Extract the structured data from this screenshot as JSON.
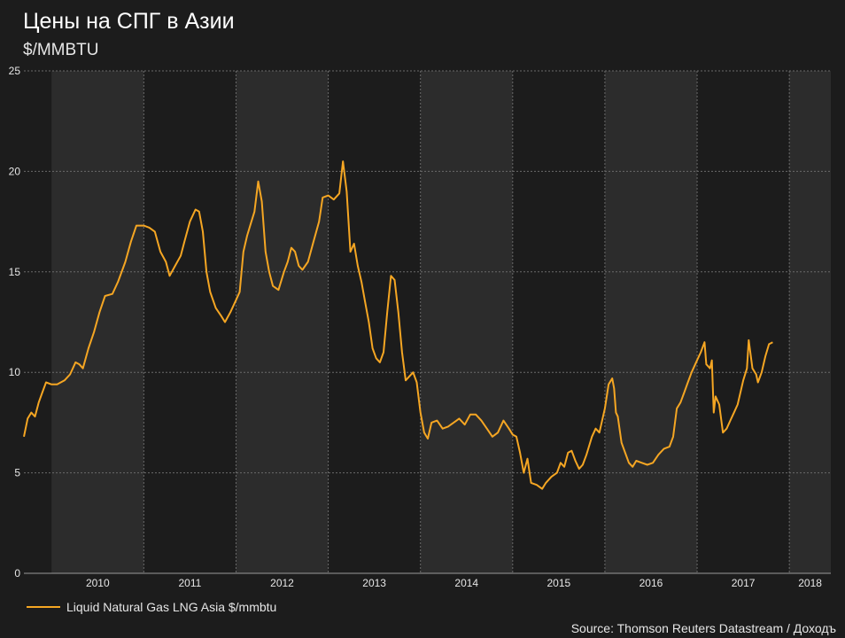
{
  "chart_data": {
    "type": "line",
    "title": "Цены на СПГ в Азии",
    "ylabel": "$/MMBTU",
    "ylim": [
      0,
      25
    ],
    "yticks": [
      0,
      5,
      10,
      15,
      20,
      25
    ],
    "xlim": [
      2009.7,
      2018.45
    ],
    "year_ticks": [
      "2010",
      "2011",
      "2012",
      "2013",
      "2014",
      "2015",
      "2016",
      "2017",
      "2018"
    ],
    "grid": true,
    "legend_position": "bottom-left",
    "line_color": "#f5a623",
    "band_colors": [
      "#1c1c1c",
      "#2c2c2c"
    ],
    "series": [
      {
        "name": "Liquid Natural Gas LNG Asia $/mmbtu",
        "points": [
          [
            2009.7,
            6.8
          ],
          [
            2009.74,
            7.7
          ],
          [
            2009.78,
            8.0
          ],
          [
            2009.82,
            7.8
          ],
          [
            2009.86,
            8.5
          ],
          [
            2009.9,
            9.0
          ],
          [
            2009.94,
            9.5
          ],
          [
            2010.0,
            9.4
          ],
          [
            2010.06,
            9.4
          ],
          [
            2010.14,
            9.6
          ],
          [
            2010.2,
            9.9
          ],
          [
            2010.26,
            10.5
          ],
          [
            2010.3,
            10.4
          ],
          [
            2010.34,
            10.2
          ],
          [
            2010.4,
            11.2
          ],
          [
            2010.46,
            12.0
          ],
          [
            2010.52,
            13.0
          ],
          [
            2010.58,
            13.8
          ],
          [
            2010.66,
            13.9
          ],
          [
            2010.72,
            14.5
          ],
          [
            2010.8,
            15.5
          ],
          [
            2010.86,
            16.5
          ],
          [
            2010.92,
            17.3
          ],
          [
            2011.0,
            17.3
          ],
          [
            2011.06,
            17.2
          ],
          [
            2011.12,
            17.0
          ],
          [
            2011.18,
            16.0
          ],
          [
            2011.24,
            15.5
          ],
          [
            2011.28,
            14.8
          ],
          [
            2011.34,
            15.3
          ],
          [
            2011.4,
            15.8
          ],
          [
            2011.44,
            16.5
          ],
          [
            2011.5,
            17.5
          ],
          [
            2011.56,
            18.1
          ],
          [
            2011.6,
            18.0
          ],
          [
            2011.64,
            17.0
          ],
          [
            2011.68,
            15.0
          ],
          [
            2011.72,
            14.0
          ],
          [
            2011.78,
            13.2
          ],
          [
            2011.84,
            12.8
          ],
          [
            2011.88,
            12.5
          ],
          [
            2011.94,
            13.0
          ],
          [
            2012.0,
            13.6
          ],
          [
            2012.04,
            14.0
          ],
          [
            2012.08,
            16.0
          ],
          [
            2012.12,
            16.8
          ],
          [
            2012.16,
            17.4
          ],
          [
            2012.2,
            18.0
          ],
          [
            2012.24,
            19.5
          ],
          [
            2012.28,
            18.5
          ],
          [
            2012.32,
            16.0
          ],
          [
            2012.36,
            15.0
          ],
          [
            2012.4,
            14.3
          ],
          [
            2012.46,
            14.1
          ],
          [
            2012.52,
            15.0
          ],
          [
            2012.56,
            15.5
          ],
          [
            2012.6,
            16.2
          ],
          [
            2012.64,
            16.0
          ],
          [
            2012.68,
            15.3
          ],
          [
            2012.72,
            15.1
          ],
          [
            2012.78,
            15.5
          ],
          [
            2012.84,
            16.5
          ],
          [
            2012.9,
            17.5
          ],
          [
            2012.94,
            18.7
          ],
          [
            2013.0,
            18.8
          ],
          [
            2013.06,
            18.6
          ],
          [
            2013.12,
            18.9
          ],
          [
            2013.16,
            20.5
          ],
          [
            2013.2,
            19.0
          ],
          [
            2013.24,
            16.0
          ],
          [
            2013.28,
            16.4
          ],
          [
            2013.32,
            15.3
          ],
          [
            2013.36,
            14.5
          ],
          [
            2013.4,
            13.5
          ],
          [
            2013.44,
            12.5
          ],
          [
            2013.48,
            11.2
          ],
          [
            2013.52,
            10.7
          ],
          [
            2013.56,
            10.5
          ],
          [
            2013.6,
            11.0
          ],
          [
            2013.64,
            13.0
          ],
          [
            2013.68,
            14.8
          ],
          [
            2013.72,
            14.6
          ],
          [
            2013.76,
            13.0
          ],
          [
            2013.8,
            11.0
          ],
          [
            2013.84,
            9.6
          ],
          [
            2013.88,
            9.8
          ],
          [
            2013.92,
            10.0
          ],
          [
            2013.96,
            9.5
          ],
          [
            2014.0,
            8.0
          ],
          [
            2014.04,
            7.0
          ],
          [
            2014.08,
            6.7
          ],
          [
            2014.12,
            7.5
          ],
          [
            2014.18,
            7.6
          ],
          [
            2014.24,
            7.2
          ],
          [
            2014.3,
            7.3
          ],
          [
            2014.36,
            7.5
          ],
          [
            2014.42,
            7.7
          ],
          [
            2014.48,
            7.4
          ],
          [
            2014.54,
            7.9
          ],
          [
            2014.6,
            7.9
          ],
          [
            2014.66,
            7.6
          ],
          [
            2014.72,
            7.2
          ],
          [
            2014.78,
            6.8
          ],
          [
            2014.84,
            7.0
          ],
          [
            2014.9,
            7.6
          ],
          [
            2014.96,
            7.2
          ],
          [
            2015.0,
            6.9
          ],
          [
            2015.04,
            6.8
          ],
          [
            2015.08,
            6.0
          ],
          [
            2015.12,
            5.0
          ],
          [
            2015.16,
            5.7
          ],
          [
            2015.2,
            4.5
          ],
          [
            2015.26,
            4.4
          ],
          [
            2015.32,
            4.2
          ],
          [
            2015.36,
            4.5
          ],
          [
            2015.42,
            4.8
          ],
          [
            2015.48,
            5.0
          ],
          [
            2015.52,
            5.5
          ],
          [
            2015.56,
            5.3
          ],
          [
            2015.6,
            6.0
          ],
          [
            2015.64,
            6.1
          ],
          [
            2015.68,
            5.6
          ],
          [
            2015.72,
            5.2
          ],
          [
            2015.76,
            5.4
          ],
          [
            2015.8,
            5.9
          ],
          [
            2015.86,
            6.8
          ],
          [
            2015.9,
            7.2
          ],
          [
            2015.94,
            7.0
          ],
          [
            2016.0,
            8.2
          ],
          [
            2016.04,
            9.4
          ],
          [
            2016.08,
            9.7
          ],
          [
            2016.1,
            9.2
          ],
          [
            2016.12,
            8.0
          ],
          [
            2016.14,
            7.8
          ],
          [
            2016.18,
            6.5
          ],
          [
            2016.22,
            6.0
          ],
          [
            2016.26,
            5.5
          ],
          [
            2016.3,
            5.3
          ],
          [
            2016.34,
            5.6
          ],
          [
            2016.4,
            5.5
          ],
          [
            2016.46,
            5.4
          ],
          [
            2016.52,
            5.5
          ],
          [
            2016.58,
            5.9
          ],
          [
            2016.64,
            6.2
          ],
          [
            2016.7,
            6.3
          ],
          [
            2016.74,
            6.8
          ],
          [
            2016.78,
            8.2
          ],
          [
            2016.82,
            8.5
          ],
          [
            2016.86,
            9.0
          ],
          [
            2016.9,
            9.5
          ],
          [
            2016.94,
            10.0
          ],
          [
            2017.0,
            10.6
          ],
          [
            2017.04,
            11.0
          ],
          [
            2017.08,
            11.5
          ],
          [
            2017.1,
            10.4
          ],
          [
            2017.14,
            10.2
          ],
          [
            2017.16,
            10.6
          ],
          [
            2017.18,
            8.0
          ],
          [
            2017.2,
            8.8
          ],
          [
            2017.24,
            8.4
          ],
          [
            2017.28,
            7.0
          ],
          [
            2017.32,
            7.2
          ],
          [
            2017.36,
            7.6
          ],
          [
            2017.4,
            8.0
          ],
          [
            2017.44,
            8.4
          ],
          [
            2017.5,
            9.6
          ],
          [
            2017.54,
            10.2
          ],
          [
            2017.56,
            11.6
          ],
          [
            2017.6,
            10.2
          ],
          [
            2017.64,
            9.9
          ],
          [
            2017.66,
            9.5
          ],
          [
            2017.7,
            10.0
          ],
          [
            2017.74,
            10.8
          ],
          [
            2017.78,
            11.4
          ],
          [
            2017.82,
            11.5
          ]
        ]
      }
    ],
    "source": "Source: Thomson Reuters Datastream / Доходъ"
  }
}
